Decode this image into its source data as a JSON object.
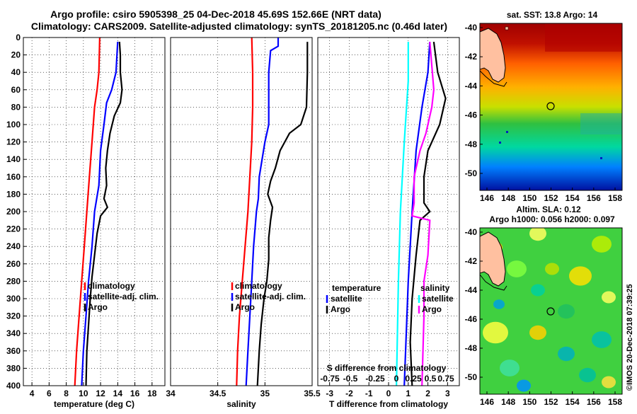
{
  "title_line1": "Argo profile: csiro 5905398_25 04-Dec-2018 45.69S 152.66E (NRT data)",
  "title_line2": "Climatology: CARS2009. Satellite-adjusted climatology: synTS_20181205.nc (0.46d later)",
  "watermark": "©IMOS 20-Dec-2018 07:39:25",
  "colors": {
    "climatology": "#ff0000",
    "satellite": "#0000ff",
    "argo": "#000000",
    "sat_t": "#00ffff",
    "sat_s": "#ff00ff"
  },
  "chart_data": [
    {
      "type": "line",
      "name": "temperature",
      "xlabel": "temperature (deg C)",
      "xlim": [
        3,
        19.5
      ],
      "ylim": [
        400,
        0
      ],
      "xticks": [
        4,
        6,
        8,
        10,
        12,
        14,
        16,
        18
      ],
      "yticks": [
        0,
        20,
        40,
        60,
        80,
        100,
        120,
        140,
        160,
        180,
        200,
        220,
        240,
        260,
        280,
        300,
        320,
        340,
        360,
        380,
        400
      ],
      "legend": [
        "climatology",
        "satellite-adj. clim.",
        "Argo"
      ],
      "series": [
        {
          "name": "climatology",
          "points": [
            [
              11.9,
              0
            ],
            [
              11.8,
              40
            ],
            [
              11.6,
              60
            ],
            [
              11.3,
              80
            ],
            [
              11.0,
              120
            ],
            [
              10.7,
              160
            ],
            [
              10.4,
              200
            ],
            [
              10.1,
              240
            ],
            [
              9.8,
              280
            ],
            [
              9.5,
              320
            ],
            [
              9.2,
              360
            ],
            [
              9.0,
              400
            ]
          ]
        },
        {
          "name": "satellite-adj. clim.",
          "points": [
            [
              14.0,
              5
            ],
            [
              13.8,
              40
            ],
            [
              13.3,
              60
            ],
            [
              12.7,
              75
            ],
            [
              12.4,
              100
            ],
            [
              12.0,
              130
            ],
            [
              11.8,
              170
            ],
            [
              11.3,
              200
            ],
            [
              11.0,
              240
            ],
            [
              10.6,
              280
            ],
            [
              10.3,
              320
            ],
            [
              10.0,
              360
            ],
            [
              9.8,
              400
            ]
          ]
        },
        {
          "name": "Argo",
          "points": [
            [
              14.2,
              5
            ],
            [
              14.3,
              20
            ],
            [
              14.3,
              40
            ],
            [
              14.5,
              60
            ],
            [
              14.3,
              75
            ],
            [
              13.6,
              90
            ],
            [
              13.1,
              110
            ],
            [
              12.8,
              130
            ],
            [
              12.6,
              150
            ],
            [
              12.7,
              170
            ],
            [
              12.4,
              185
            ],
            [
              12.8,
              195
            ],
            [
              12.0,
              205
            ],
            [
              11.6,
              225
            ],
            [
              11.3,
              250
            ],
            [
              11.0,
              275
            ],
            [
              10.8,
              300
            ],
            [
              10.6,
              330
            ],
            [
              10.4,
              360
            ],
            [
              10.3,
              400
            ]
          ]
        }
      ]
    },
    {
      "type": "line",
      "name": "salinity",
      "xlabel": "salinity",
      "xlim": [
        34,
        35.5
      ],
      "ylim": [
        400,
        0
      ],
      "xticks": [
        34,
        34.5,
        35,
        35.5
      ],
      "legend": [
        "climatology",
        "satellite-adj. clim.",
        "Argo"
      ],
      "series": [
        {
          "name": "climatology",
          "points": [
            [
              34.86,
              0
            ],
            [
              34.87,
              40
            ],
            [
              34.87,
              80
            ],
            [
              34.86,
              120
            ],
            [
              34.84,
              160
            ],
            [
              34.82,
              200
            ],
            [
              34.79,
              240
            ],
            [
              34.76,
              280
            ],
            [
              34.73,
              320
            ],
            [
              34.71,
              360
            ],
            [
              34.7,
              400
            ]
          ]
        },
        {
          "name": "satellite-adj. clim.",
          "points": [
            [
              35.14,
              0
            ],
            [
              35.14,
              10
            ],
            [
              35.06,
              15
            ],
            [
              35.04,
              40
            ],
            [
              35.04,
              60
            ],
            [
              35.04,
              80
            ],
            [
              35.04,
              100
            ],
            [
              35.0,
              120
            ],
            [
              34.97,
              140
            ],
            [
              34.94,
              160
            ],
            [
              34.93,
              185
            ],
            [
              34.91,
              200
            ],
            [
              34.88,
              240
            ],
            [
              34.86,
              280
            ],
            [
              34.84,
              320
            ],
            [
              34.82,
              360
            ],
            [
              34.8,
              400
            ]
          ]
        },
        {
          "name": "Argo",
          "points": [
            [
              35.45,
              5
            ],
            [
              35.45,
              40
            ],
            [
              35.44,
              80
            ],
            [
              35.38,
              100
            ],
            [
              35.26,
              110
            ],
            [
              35.16,
              130
            ],
            [
              35.11,
              150
            ],
            [
              35.06,
              165
            ],
            [
              35.03,
              180
            ],
            [
              35.08,
              195
            ],
            [
              35.06,
              210
            ],
            [
              35.04,
              230
            ],
            [
              35.04,
              255
            ],
            [
              35.02,
              280
            ],
            [
              34.99,
              300
            ],
            [
              34.96,
              330
            ],
            [
              34.94,
              360
            ],
            [
              34.92,
              400
            ]
          ]
        }
      ]
    },
    {
      "type": "line",
      "name": "difference",
      "xlabel": "T difference from climatology",
      "xlabel2": "S difference from climatology",
      "xlim": [
        -3.6,
        3.6
      ],
      "ylim": [
        400,
        0
      ],
      "xticks": [
        -3,
        -2,
        -1,
        0,
        1,
        2,
        3
      ],
      "xtick_labels": [
        "-3",
        "-2",
        "-1",
        "0",
        "1",
        "2",
        "3"
      ],
      "s_ticks": [
        -0.75,
        -0.5,
        -0.25,
        0,
        0.25,
        0.5,
        0.75
      ],
      "s_tick_labels": [
        "-0.75",
        "-0.5",
        "-0.25",
        "0",
        "0.25",
        "0.5",
        "0.75"
      ],
      "legend_left": [
        "temperature",
        "satellite",
        "Argo"
      ],
      "legend_right": [
        "salinity",
        "satellite",
        "Argo"
      ],
      "series": [
        {
          "name": "T satellite",
          "points": [
            [
              2.1,
              5
            ],
            [
              2.0,
              40
            ],
            [
              1.7,
              80
            ],
            [
              1.4,
              130
            ],
            [
              1.2,
              200
            ],
            [
              1.0,
              280
            ],
            [
              0.8,
              400
            ]
          ]
        },
        {
          "name": "T Argo",
          "points": [
            [
              2.3,
              5
            ],
            [
              2.5,
              40
            ],
            [
              2.9,
              70
            ],
            [
              2.6,
              100
            ],
            [
              2.0,
              130
            ],
            [
              1.8,
              160
            ],
            [
              1.8,
              190
            ],
            [
              2.1,
              200
            ],
            [
              1.6,
              210
            ],
            [
              1.4,
              250
            ],
            [
              1.2,
              300
            ],
            [
              1.1,
              350
            ],
            [
              1.2,
              400
            ]
          ]
        },
        {
          "name": "S satellite",
          "points": [
            [
              1.0,
              5
            ],
            [
              1.0,
              50
            ],
            [
              0.8,
              120
            ],
            [
              0.6,
              200
            ],
            [
              0.5,
              280
            ],
            [
              0.4,
              400
            ]
          ]
        },
        {
          "name": "S Argo",
          "points": [
            [
              2.1,
              5
            ],
            [
              2.3,
              60
            ],
            [
              2.2,
              80
            ],
            [
              1.9,
              110
            ],
            [
              1.6,
              130
            ],
            [
              1.3,
              160
            ],
            [
              1.3,
              190
            ],
            [
              1.2,
              205
            ],
            [
              2.1,
              210
            ],
            [
              2.0,
              250
            ],
            [
              1.8,
              280
            ],
            [
              1.8,
              320
            ],
            [
              1.7,
              400
            ]
          ]
        }
      ]
    }
  ],
  "map1": {
    "title": "sat. SST: 13.8 Argo: 14",
    "xticks": [
      "146",
      "148",
      "150",
      "152",
      "154",
      "156",
      "158"
    ],
    "yticks": [
      "-40",
      "-42",
      "-44",
      "-46",
      "-48",
      "-50"
    ]
  },
  "map2": {
    "title_line1": "Altim. SLA: 0.12",
    "title_line2": "Argo h1000: 0.056 h2000: 0.097",
    "xticks": [
      "146",
      "148",
      "150",
      "152",
      "154",
      "156",
      "158"
    ],
    "yticks": [
      "-40",
      "-42",
      "-44",
      "-46",
      "-48",
      "-50"
    ]
  }
}
